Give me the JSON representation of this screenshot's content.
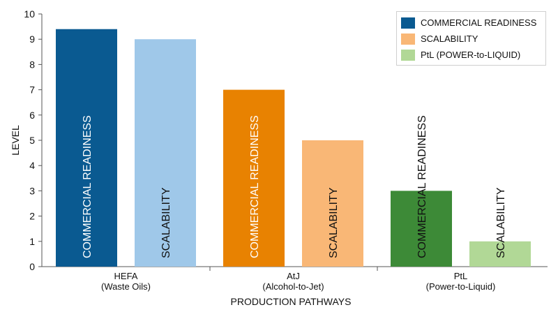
{
  "chart_data": {
    "type": "bar",
    "xlabel": "PRODUCTION PATHWAYS",
    "ylabel": "LEVEL",
    "ylim": [
      0,
      10
    ],
    "yticks": [
      0,
      1,
      2,
      3,
      4,
      5,
      6,
      7,
      8,
      9,
      10
    ],
    "grid": false,
    "legend_placement": "top-right",
    "legend": [
      {
        "label": "COMMERCIAL READINESS",
        "color": "#0a5a91"
      },
      {
        "label": "SCALABILITY",
        "color": "#f9b776"
      },
      {
        "label": "PtL (POWER-to-LIQUID)",
        "color": "#b1d896"
      }
    ],
    "groups": [
      {
        "label_line1": "HEFA",
        "label_line2": "(Waste Oils)",
        "bars": [
          {
            "label": "COMMERCIAL READINESS",
            "value": 9.4,
            "color": "#0a5a91",
            "text_color": "#ffffff"
          },
          {
            "label": "SCALABILITY",
            "value": 9.0,
            "color": "#9fc8e9",
            "text_color": "#111111"
          }
        ]
      },
      {
        "label_line1": "AtJ",
        "label_line2": "(Alcohol-to-Jet)",
        "bars": [
          {
            "label": "COMMERCIAL READINESS",
            "value": 7.0,
            "color": "#e88201",
            "text_color": "#ffffff"
          },
          {
            "label": "SCALABILITY",
            "value": 5.0,
            "color": "#f9b776",
            "text_color": "#111111"
          }
        ]
      },
      {
        "label_line1": "PtL",
        "label_line2": "(Power-to-Liquid)",
        "bars": [
          {
            "label": "COMMERCIAL READINESS",
            "value": 3.0,
            "color": "#3d8a37",
            "text_color": "#111111"
          },
          {
            "label": "SCALABILITY",
            "value": 1.0,
            "color": "#b1d896",
            "text_color": "#111111"
          }
        ]
      }
    ]
  }
}
